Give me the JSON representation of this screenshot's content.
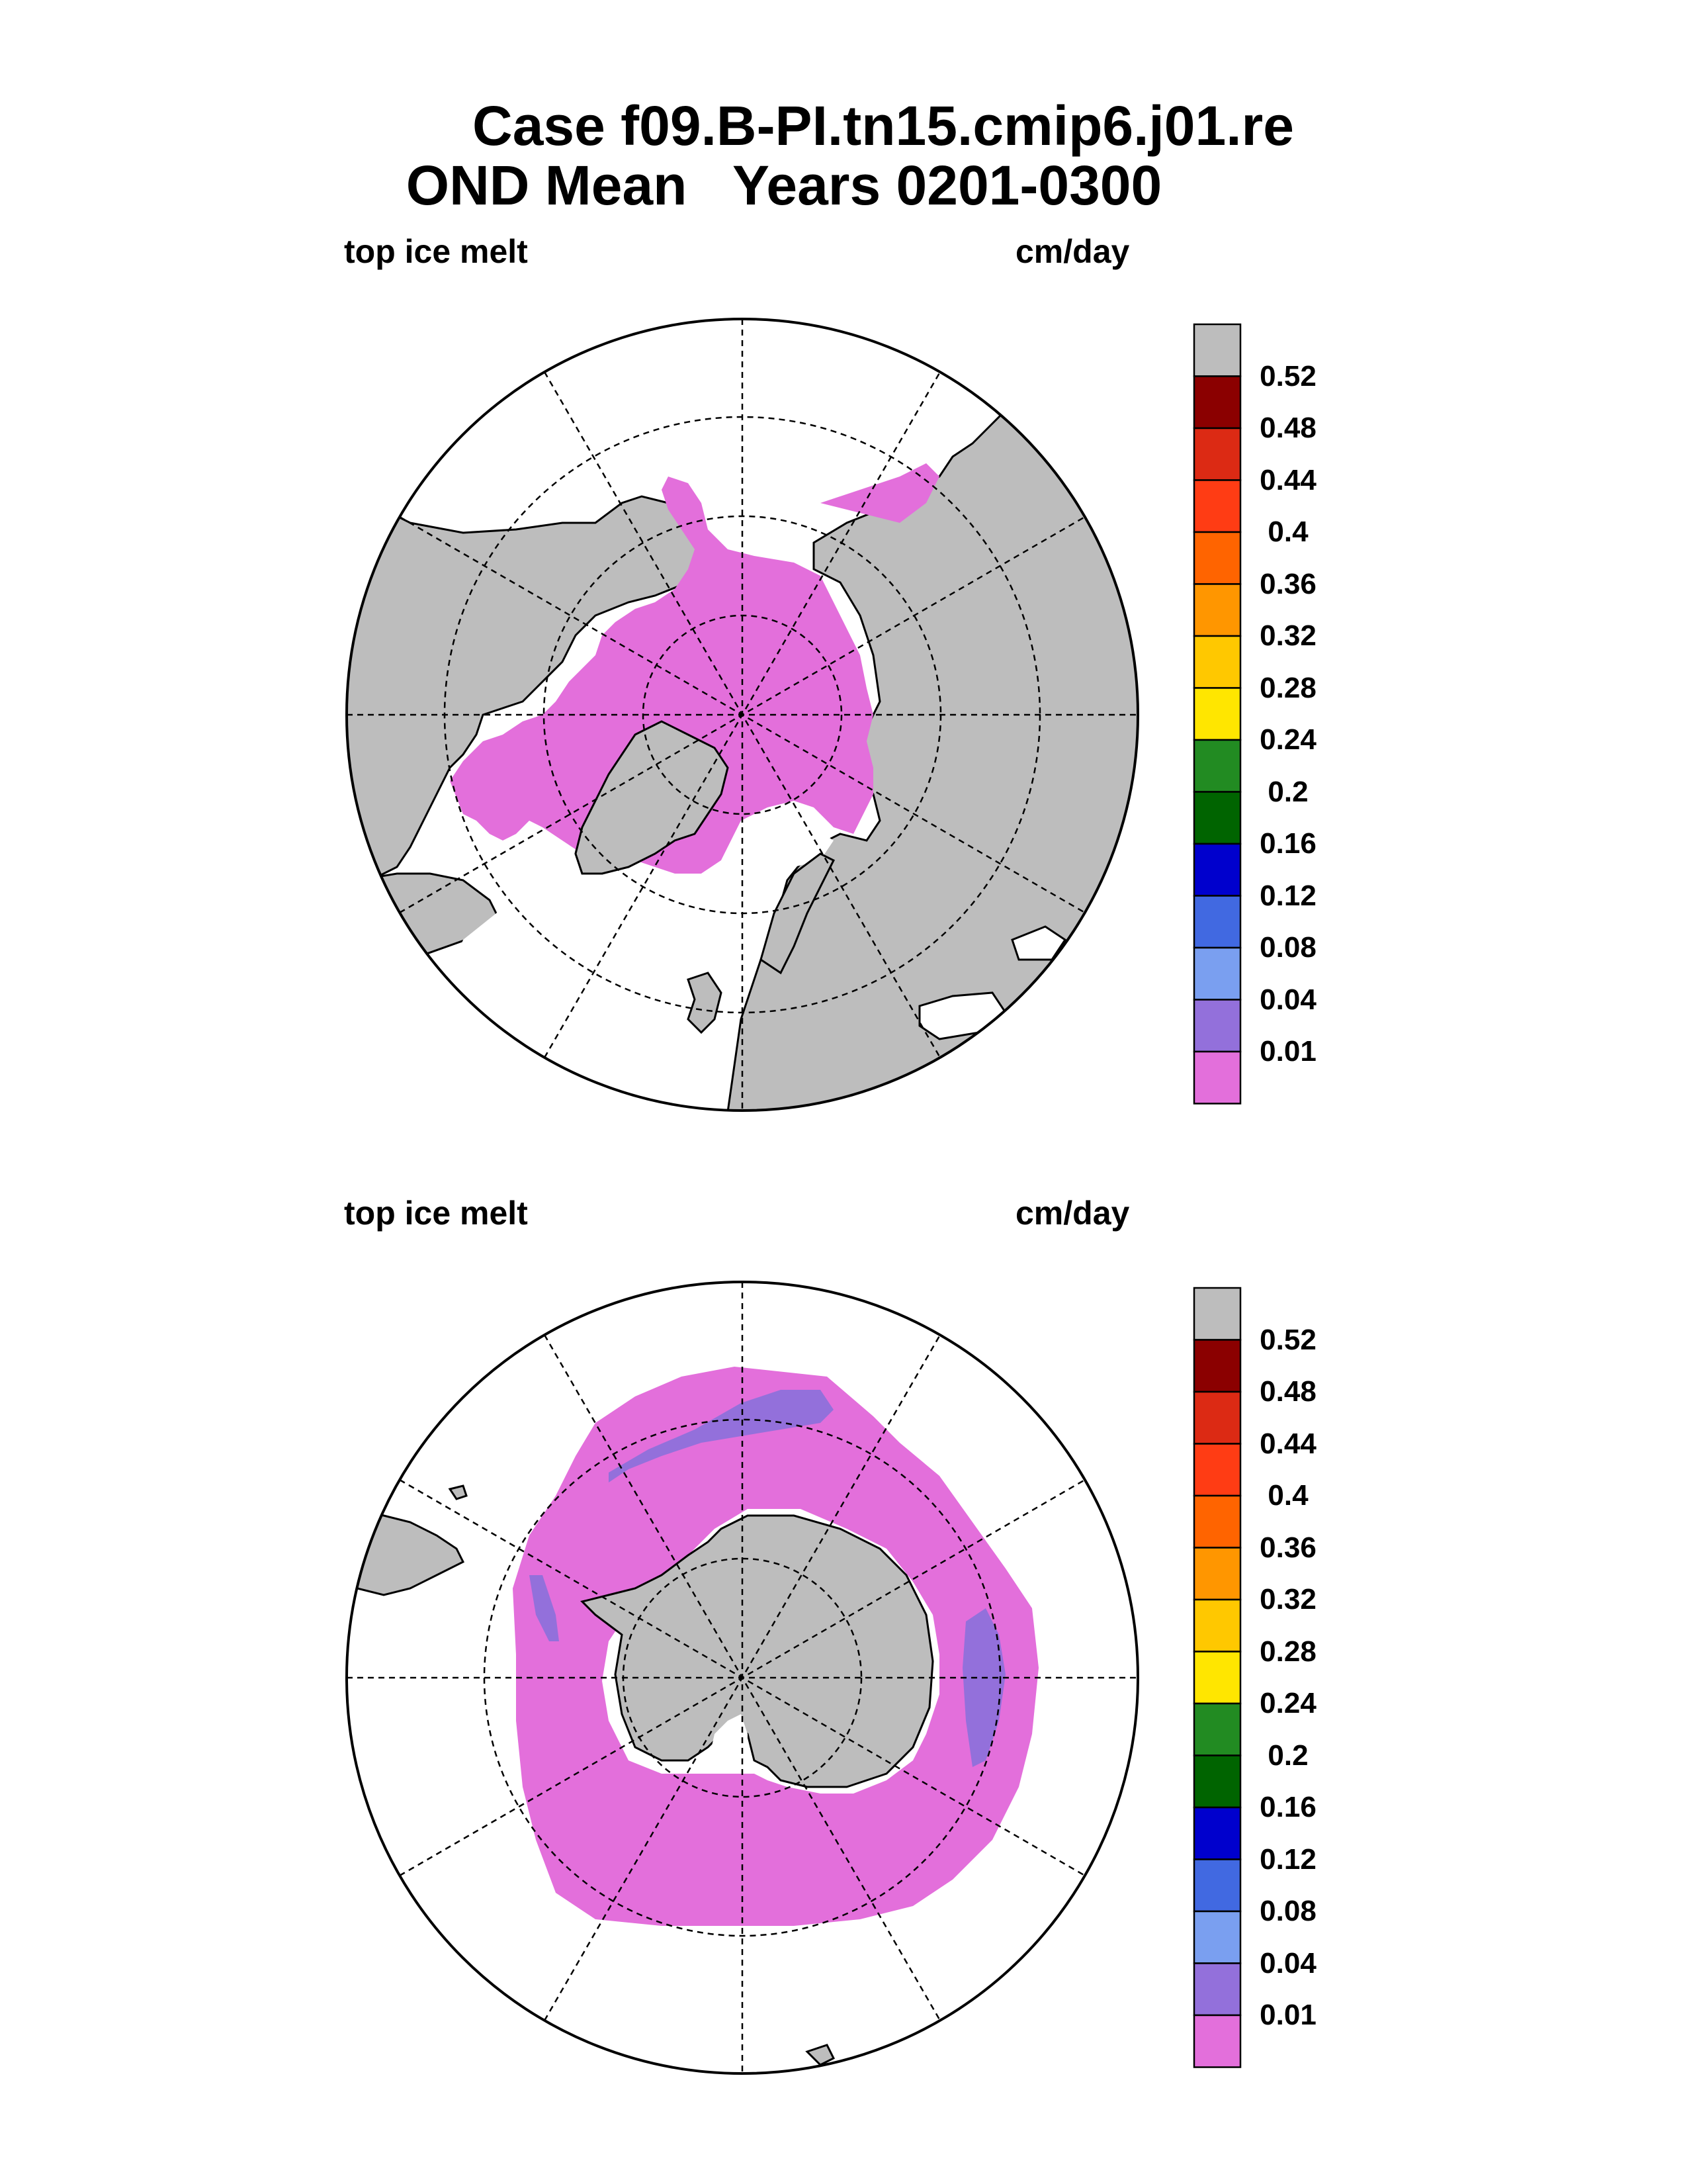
{
  "title": {
    "line1": "Case f09.B-PI.tn15.cmip6.j01.re",
    "line2": "OND Mean   Years 0201-0300"
  },
  "panels": [
    {
      "name": "north",
      "variable": "top ice melt",
      "units": "cm/day"
    },
    {
      "name": "south",
      "variable": "top ice melt",
      "units": "cm/day"
    }
  ],
  "colorbar": {
    "labels": [
      "0.52",
      "0.48",
      "0.44",
      "0.4",
      "0.36",
      "0.32",
      "0.28",
      "0.24",
      "0.2",
      "0.16",
      "0.12",
      "0.08",
      "0.04",
      "0.01"
    ],
    "colors": [
      "#bdbdbd",
      "#8b0000",
      "#dc2a14",
      "#ff3c14",
      "#ff6400",
      "#ff9600",
      "#ffc800",
      "#ffe600",
      "#228b22",
      "#006400",
      "#0000cd",
      "#4169e1",
      "#7a9ff0",
      "#9370db",
      "#e36fdb"
    ]
  },
  "legend_colors": {
    "land": "#bdbdbd",
    "ocean_no_ice": "#ffffff",
    "melt_lowest": "#e36fdb",
    "melt_0_01": "#9370db"
  }
}
